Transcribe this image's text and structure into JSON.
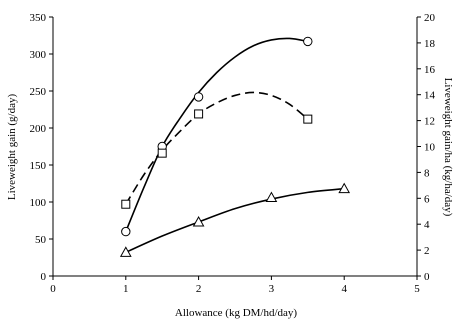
{
  "chart_data": {
    "type": "line",
    "xlabel": "Allowance (kg DM/hd/day)",
    "ylabel": "Liveweight gain (g/day)",
    "y2label": "Liveweight gain/ha (kg/ha/day)",
    "xlim": [
      0,
      5
    ],
    "ylim": [
      0,
      350
    ],
    "y2lim": [
      0,
      20
    ],
    "x_ticks": [
      "0",
      "1",
      "2",
      "3",
      "4",
      "5"
    ],
    "y_ticks": [
      "0",
      "50",
      "100",
      "150",
      "200",
      "250",
      "300",
      "350"
    ],
    "y2_ticks": [
      "0",
      "2",
      "4",
      "6",
      "8",
      "10",
      "12",
      "14",
      "16",
      "18",
      "20"
    ],
    "grid": false,
    "legend": "none",
    "series": [
      {
        "marker": "circle",
        "line_style": "solid",
        "color": "#000000",
        "axis": "left",
        "points": [
          {
            "x": 1,
            "y": 60
          },
          {
            "x": 1.5,
            "y": 175
          },
          {
            "x": 2,
            "y": 242
          },
          {
            "x": 3.5,
            "y": 317
          }
        ],
        "curve": [
          {
            "x": 1.0,
            "y": 60
          },
          {
            "x": 1.25,
            "y": 120
          },
          {
            "x": 1.5,
            "y": 175
          },
          {
            "x": 1.75,
            "y": 214
          },
          {
            "x": 2.0,
            "y": 248
          },
          {
            "x": 2.25,
            "y": 275
          },
          {
            "x": 2.5,
            "y": 296
          },
          {
            "x": 2.75,
            "y": 311
          },
          {
            "x": 3.0,
            "y": 319
          },
          {
            "x": 3.25,
            "y": 321
          },
          {
            "x": 3.5,
            "y": 317
          }
        ]
      },
      {
        "marker": "square",
        "line_style": "dashed",
        "color": "#000000",
        "axis": "left",
        "points": [
          {
            "x": 1,
            "y": 97
          },
          {
            "x": 1.5,
            "y": 166
          },
          {
            "x": 2,
            "y": 219
          },
          {
            "x": 3.5,
            "y": 212
          }
        ],
        "curve": [
          {
            "x": 1.0,
            "y": 97
          },
          {
            "x": 1.25,
            "y": 137
          },
          {
            "x": 1.5,
            "y": 170
          },
          {
            "x": 1.75,
            "y": 196
          },
          {
            "x": 2.0,
            "y": 219
          },
          {
            "x": 2.25,
            "y": 234
          },
          {
            "x": 2.5,
            "y": 244
          },
          {
            "x": 2.75,
            "y": 248
          },
          {
            "x": 3.0,
            "y": 244
          },
          {
            "x": 3.25,
            "y": 232
          },
          {
            "x": 3.5,
            "y": 212
          }
        ]
      },
      {
        "marker": "triangle",
        "line_style": "solid",
        "color": "#000000",
        "axis": "left",
        "points": [
          {
            "x": 1,
            "y": 32
          },
          {
            "x": 2,
            "y": 73
          },
          {
            "x": 3,
            "y": 106
          },
          {
            "x": 4,
            "y": 118
          }
        ],
        "curve": [
          {
            "x": 1.0,
            "y": 32
          },
          {
            "x": 1.5,
            "y": 54
          },
          {
            "x": 2.0,
            "y": 73
          },
          {
            "x": 2.5,
            "y": 91
          },
          {
            "x": 3.0,
            "y": 104
          },
          {
            "x": 3.5,
            "y": 113
          },
          {
            "x": 4.0,
            "y": 118
          }
        ]
      }
    ]
  }
}
